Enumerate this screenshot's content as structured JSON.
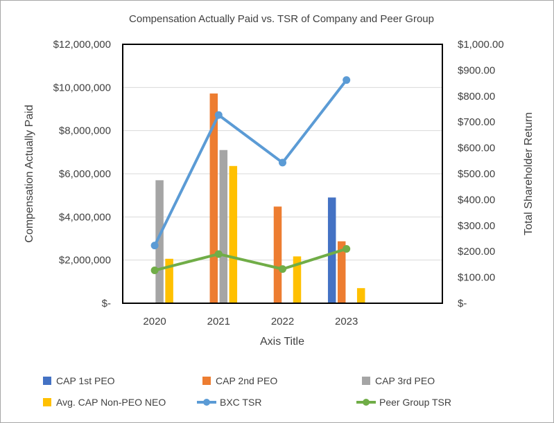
{
  "chart_data": {
    "type": "bar",
    "title": "Compensation Actually Paid vs. TSR of Company and Peer Group",
    "xlabel": "Axis Title",
    "ylabel": "Compensation Actually Paid",
    "y2label": "Total Shareholder Return",
    "categories": [
      "2020",
      "2021",
      "2022",
      "2023"
    ],
    "ylim": [
      0,
      12000000
    ],
    "y2lim": [
      0,
      1000
    ],
    "yticks": [
      "$-",
      "$2,000,000",
      "$4,000,000",
      "$6,000,000",
      "$8,000,000",
      "$10,000,000",
      "$12,000,000"
    ],
    "y2ticks": [
      "$-",
      "$100.00",
      "$200.00",
      "$300.00",
      "$400.00",
      "$500.00",
      "$600.00",
      "$700.00",
      "$800.00",
      "$900.00",
      "$1,000.00"
    ],
    "grid": true,
    "legend_position": "bottom",
    "bar_series": [
      {
        "name": "CAP 1st PEO",
        "color": "#4472c4",
        "values": [
          null,
          null,
          null,
          4900000
        ]
      },
      {
        "name": "CAP 2nd PEO",
        "color": "#ed7d31",
        "values": [
          null,
          9720000,
          4480000,
          2870000
        ]
      },
      {
        "name": "CAP 3rd PEO",
        "color": "#a5a5a5",
        "values": [
          5700000,
          7100000,
          null,
          null
        ]
      },
      {
        "name": "Avg. CAP Non-PEO NEO",
        "color": "#ffc000",
        "values": [
          2060000,
          6360000,
          2170000,
          700000
        ]
      }
    ],
    "line_series": [
      {
        "name": "BXC TSR",
        "color": "#5b9bd5",
        "axis": "right",
        "values": [
          223,
          727,
          543,
          862
        ]
      },
      {
        "name": "Peer Group TSR",
        "color": "#70ad47",
        "axis": "right",
        "values": [
          127,
          190,
          132,
          210
        ]
      }
    ]
  }
}
